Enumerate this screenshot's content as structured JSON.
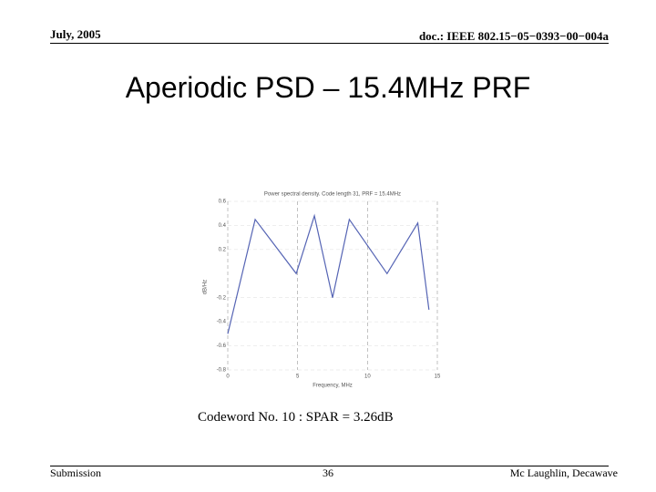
{
  "header": {
    "date": "July, 2005",
    "doc": "doc.: IEEE 802.15−05−0393−00−004a"
  },
  "title": "Aperiodic PSD – 15.4MHz PRF",
  "chart_data": {
    "type": "line",
    "title": "Power spectral density. Code length 31, PRF = 15.4MHz",
    "x_label": "Frequency, MHz",
    "y_label": "dB/Hz",
    "xlim": [
      0,
      15
    ],
    "xticks": [
      0,
      5,
      10,
      15
    ],
    "ylim": [
      -0.8,
      0.6
    ],
    "yticks": [
      0.6,
      0.4,
      0.2,
      -0.2,
      -0.4,
      -0.6,
      -0.8
    ],
    "series": [
      {
        "color": "#5564b4",
        "x": [
          0,
          1.96,
          4.9,
          6.2,
          7.5,
          8.7,
          11.4,
          13.6,
          14.4
        ],
        "values": [
          -0.5,
          0.45,
          0.0,
          0.48,
          -0.2,
          0.45,
          0.0,
          0.42,
          -0.3
        ]
      }
    ]
  },
  "caption": "Codeword No. 10 : SPAR = 3.26dB",
  "footer": {
    "left": "Submission",
    "page": "36",
    "right": "Mc Laughlin, Decawave"
  }
}
